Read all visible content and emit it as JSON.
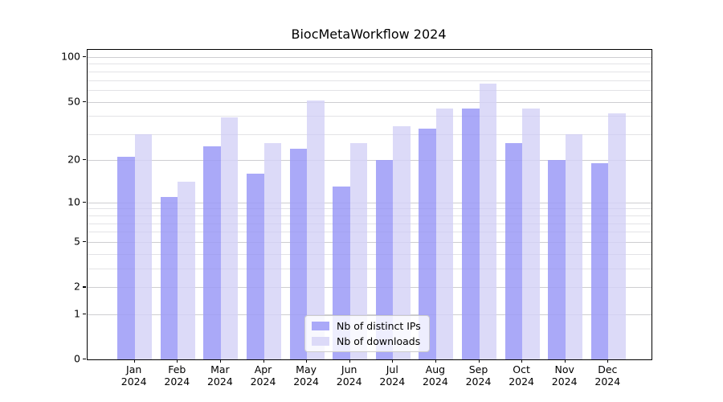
{
  "title": "BiocMetaWorkflow 2024",
  "legend": {
    "items": [
      {
        "label": "Nb of distinct IPs",
        "color": "#aaa9f8"
      },
      {
        "label": "Nb of downloads",
        "color": "#dcdaf8"
      }
    ]
  },
  "x_axis": {
    "months": [
      "Jan",
      "Feb",
      "Mar",
      "Apr",
      "May",
      "Jun",
      "Jul",
      "Aug",
      "Sep",
      "Oct",
      "Nov",
      "Dec"
    ],
    "year": "2024"
  },
  "y_axis": {
    "tick_labels": [
      "0",
      "1",
      "2",
      "5",
      "10",
      "20",
      "50",
      "100"
    ]
  },
  "chart_data": {
    "type": "bar",
    "title": "BiocMetaWorkflow 2024",
    "categories": [
      "Jan 2024",
      "Feb 2024",
      "Mar 2024",
      "Apr 2024",
      "May 2024",
      "Jun 2024",
      "Jul 2024",
      "Aug 2024",
      "Sep 2024",
      "Oct 2024",
      "Nov 2024",
      "Dec 2024"
    ],
    "series": [
      {
        "name": "Nb of distinct IPs",
        "color": "#aaa9f8",
        "values": [
          21,
          11,
          25,
          16,
          24,
          13,
          20,
          33,
          45,
          26,
          20,
          19
        ]
      },
      {
        "name": "Nb of downloads",
        "color": "#dcdaf8",
        "values": [
          30,
          14,
          39,
          26,
          51,
          26,
          34,
          45,
          66,
          45,
          30,
          42
        ]
      }
    ],
    "xlabel": "",
    "ylabel": "",
    "yscale": "log1p",
    "ylim": [
      0,
      111.6
    ],
    "yticks": [
      0,
      1,
      2,
      5,
      10,
      20,
      50,
      100
    ],
    "minor_gridlines": [
      3,
      4,
      6,
      7,
      8,
      9,
      30,
      40,
      60,
      70,
      80,
      90
    ],
    "grid": true,
    "legend_position": "lower center",
    "background_color": "#ffffff",
    "text_color": "#000000"
  }
}
